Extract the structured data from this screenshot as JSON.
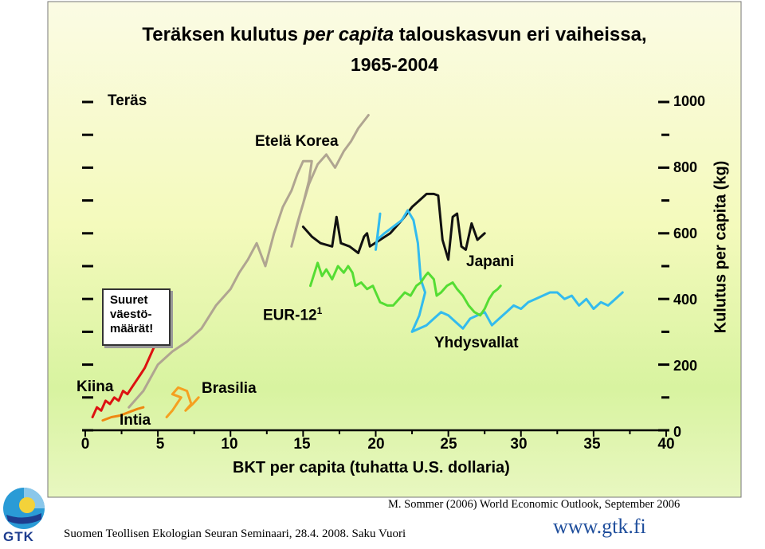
{
  "slide": {
    "title_part1": "Teräksen kulutus ",
    "title_italic": "per capita",
    "title_part2": " talouskasvun eri vaiheissa,",
    "title_line2": "1965-2004",
    "left_legend_label": "Teräs",
    "note_box_lines": [
      "Suuret",
      "väestö-",
      "määrät!"
    ],
    "source": "M. Sommer (2006) World Economic Outlook, September 2006",
    "footer": "Suomen Teollisen Ekologian Seuran Seminaari, 28.4. 2008. Saku Vuori",
    "website": "www.gtk.fi",
    "logo": "GTK",
    "colors": {
      "logo_blue": "#1e3d8f",
      "website_blue": "#1f4e9c"
    }
  },
  "chart_data": {
    "type": "line",
    "title": "Teräksen kulutus per capita talouskasvun eri vaiheissa, 1965-2004",
    "xlabel": "BKT per capita (tuhatta U.S. dollaria)",
    "ylabel": "Kulutus per capita (kg)",
    "xlim": [
      0,
      40
    ],
    "ylim": [
      0,
      1000
    ],
    "x_ticks": [
      0,
      5,
      10,
      15,
      20,
      25,
      30,
      35,
      40
    ],
    "y_ticks": [
      0,
      200,
      400,
      600,
      800,
      1000
    ],
    "grid": false,
    "series": [
      {
        "name": "Kiina",
        "color": "#dd1111",
        "points": [
          [
            0.5,
            40
          ],
          [
            0.8,
            70
          ],
          [
            1.1,
            60
          ],
          [
            1.4,
            90
          ],
          [
            1.7,
            80
          ],
          [
            2.0,
            100
          ],
          [
            2.3,
            90
          ],
          [
            2.6,
            120
          ],
          [
            2.9,
            110
          ],
          [
            3.2,
            130
          ],
          [
            3.5,
            150
          ],
          [
            3.8,
            170
          ],
          [
            4.1,
            190
          ],
          [
            4.4,
            220
          ],
          [
            4.7,
            250
          ],
          [
            5.0,
            270
          ]
        ]
      },
      {
        "name": "Intia",
        "color": "#ee8811",
        "points": [
          [
            1.2,
            30
          ],
          [
            1.8,
            40
          ],
          [
            2.4,
            45
          ],
          [
            3.0,
            55
          ],
          [
            3.6,
            65
          ],
          [
            4.0,
            70
          ]
        ]
      },
      {
        "name": "Brasilia",
        "color": "#f5a020",
        "points": [
          [
            5.6,
            40
          ],
          [
            6.0,
            60
          ],
          [
            6.3,
            80
          ],
          [
            6.6,
            100
          ],
          [
            6.0,
            110
          ],
          [
            6.4,
            130
          ],
          [
            7.0,
            120
          ],
          [
            7.3,
            80
          ],
          [
            6.9,
            60
          ],
          [
            7.4,
            80
          ],
          [
            7.8,
            100
          ],
          [
            7.5,
            85
          ]
        ]
      },
      {
        "name": "Etelä Korea",
        "color": "#b0a591",
        "points": [
          [
            3.0,
            70
          ],
          [
            4.0,
            120
          ],
          [
            5.0,
            200
          ],
          [
            6.0,
            240
          ],
          [
            7.0,
            270
          ],
          [
            8.0,
            310
          ],
          [
            9.0,
            380
          ],
          [
            10.0,
            430
          ],
          [
            10.6,
            480
          ],
          [
            11.2,
            520
          ],
          [
            11.8,
            570
          ],
          [
            12.4,
            500
          ],
          [
            13.0,
            600
          ],
          [
            13.6,
            680
          ],
          [
            14.2,
            730
          ],
          [
            14.6,
            780
          ],
          [
            15.0,
            820
          ],
          [
            15.6,
            820
          ],
          [
            15.4,
            760
          ],
          [
            15.0,
            690
          ],
          [
            14.6,
            630
          ],
          [
            14.2,
            560
          ],
          [
            14.8,
            660
          ],
          [
            15.4,
            750
          ],
          [
            16.0,
            810
          ],
          [
            16.6,
            840
          ],
          [
            17.2,
            800
          ],
          [
            17.8,
            850
          ],
          [
            18.3,
            880
          ],
          [
            18.8,
            920
          ],
          [
            19.5,
            960
          ]
        ]
      },
      {
        "name": "Japani",
        "color": "#111111",
        "points": [
          [
            15.0,
            620
          ],
          [
            15.6,
            590
          ],
          [
            16.2,
            570
          ],
          [
            17.0,
            560
          ],
          [
            17.3,
            650
          ],
          [
            17.6,
            570
          ],
          [
            18.2,
            560
          ],
          [
            18.8,
            540
          ],
          [
            19.2,
            590
          ],
          [
            19.4,
            600
          ],
          [
            19.6,
            560
          ],
          [
            20.3,
            580
          ],
          [
            21.0,
            600
          ],
          [
            21.8,
            640
          ],
          [
            22.5,
            680
          ],
          [
            23.0,
            700
          ],
          [
            23.5,
            720
          ],
          [
            24.0,
            720
          ],
          [
            24.3,
            715
          ],
          [
            24.6,
            580
          ],
          [
            25.0,
            520
          ],
          [
            25.3,
            650
          ],
          [
            25.6,
            660
          ],
          [
            25.9,
            560
          ],
          [
            26.2,
            550
          ],
          [
            26.6,
            630
          ],
          [
            27.0,
            580
          ],
          [
            27.5,
            600
          ]
        ]
      },
      {
        "name": "Yhdysvallat",
        "color": "#33bbee",
        "points": [
          [
            20.0,
            550
          ],
          [
            20.3,
            660
          ],
          [
            20.1,
            580
          ],
          [
            20.6,
            600
          ],
          [
            21.2,
            620
          ],
          [
            21.8,
            640
          ],
          [
            22.2,
            670
          ],
          [
            22.6,
            640
          ],
          [
            22.9,
            570
          ],
          [
            23.1,
            460
          ],
          [
            23.4,
            420
          ],
          [
            23.0,
            350
          ],
          [
            22.5,
            300
          ],
          [
            23.0,
            310
          ],
          [
            23.5,
            320
          ],
          [
            24.0,
            340
          ],
          [
            24.5,
            360
          ],
          [
            25.0,
            350
          ],
          [
            25.5,
            330
          ],
          [
            26.0,
            310
          ],
          [
            26.5,
            340
          ],
          [
            27.0,
            350
          ],
          [
            27.5,
            360
          ],
          [
            28.0,
            320
          ],
          [
            28.5,
            340
          ],
          [
            29.0,
            360
          ],
          [
            29.5,
            380
          ],
          [
            30.0,
            370
          ],
          [
            30.5,
            390
          ],
          [
            31.0,
            400
          ],
          [
            31.5,
            410
          ],
          [
            32.0,
            420
          ],
          [
            32.5,
            420
          ],
          [
            33.0,
            400
          ],
          [
            33.5,
            410
          ],
          [
            34.0,
            380
          ],
          [
            34.5,
            400
          ],
          [
            35.0,
            370
          ],
          [
            35.5,
            390
          ],
          [
            36.0,
            380
          ],
          [
            36.5,
            400
          ],
          [
            37.0,
            420
          ]
        ]
      },
      {
        "name": "EUR-12¹",
        "color": "#55dd33",
        "points": [
          [
            15.5,
            440
          ],
          [
            16.0,
            510
          ],
          [
            16.3,
            470
          ],
          [
            16.6,
            490
          ],
          [
            17.0,
            460
          ],
          [
            17.4,
            500
          ],
          [
            17.8,
            480
          ],
          [
            18.1,
            500
          ],
          [
            18.4,
            480
          ],
          [
            18.6,
            440
          ],
          [
            19.0,
            450
          ],
          [
            19.4,
            430
          ],
          [
            19.8,
            440
          ],
          [
            20.3,
            390
          ],
          [
            20.8,
            380
          ],
          [
            21.2,
            380
          ],
          [
            21.6,
            400
          ],
          [
            22.0,
            420
          ],
          [
            22.4,
            410
          ],
          [
            22.8,
            440
          ],
          [
            23.1,
            450
          ],
          [
            23.4,
            470
          ],
          [
            23.6,
            480
          ],
          [
            24.0,
            460
          ],
          [
            24.2,
            410
          ],
          [
            24.5,
            420
          ],
          [
            24.9,
            440
          ],
          [
            25.3,
            450
          ],
          [
            25.6,
            430
          ],
          [
            26.0,
            410
          ],
          [
            26.4,
            380
          ],
          [
            26.8,
            360
          ],
          [
            27.2,
            350
          ],
          [
            27.5,
            370
          ],
          [
            27.8,
            400
          ],
          [
            28.1,
            420
          ],
          [
            28.4,
            430
          ],
          [
            28.6,
            440
          ]
        ]
      }
    ],
    "annotations": [
      "Kiina",
      "Intia",
      "Brasilia",
      "Etelä Korea",
      "Japani",
      "Yhdysvallat",
      "EUR-12",
      "1"
    ]
  }
}
